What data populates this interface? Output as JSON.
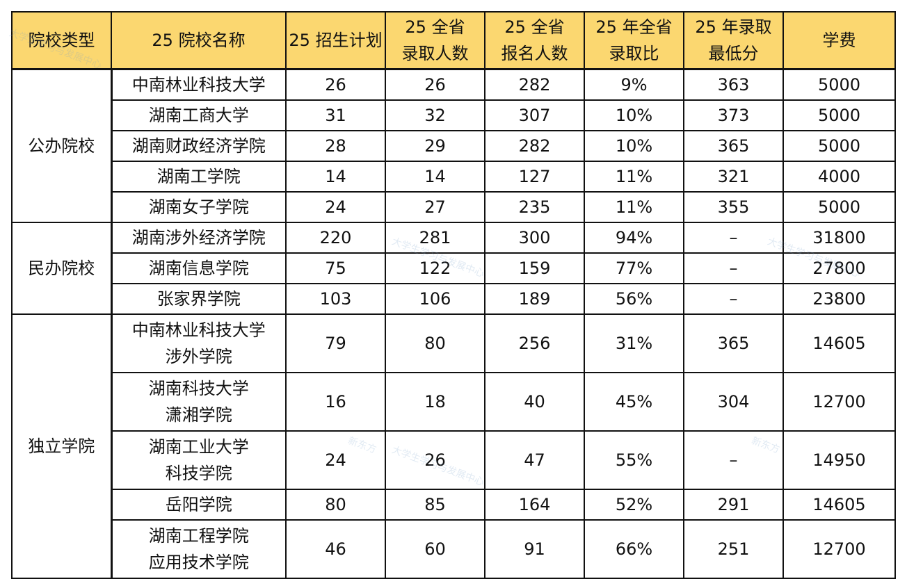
{
  "headers": [
    [
      "院校类型"
    ],
    [
      "25 院校名称"
    ],
    [
      "25 招生计划"
    ],
    [
      "25 全省",
      "录取人数"
    ],
    [
      "25 全省",
      "报名人数"
    ],
    [
      "25 年全省",
      "录取比"
    ],
    [
      "25 年录取",
      "最低分"
    ],
    [
      "学费"
    ]
  ],
  "groups": [
    {
      "type": "公办院校",
      "rows": [
        {
          "name": [
            "中南林业科技大学"
          ],
          "plan": "26",
          "admitted": "26",
          "applicants": "282",
          "ratio": "9%",
          "min_score": "363",
          "tuition": "5000"
        },
        {
          "name": [
            "湖南工商大学"
          ],
          "plan": "31",
          "admitted": "32",
          "applicants": "307",
          "ratio": "10%",
          "min_score": "373",
          "tuition": "5000"
        },
        {
          "name": [
            "湖南财政经济学院"
          ],
          "plan": "28",
          "admitted": "29",
          "applicants": "282",
          "ratio": "10%",
          "min_score": "365",
          "tuition": "5000"
        },
        {
          "name": [
            "湖南工学院"
          ],
          "plan": "14",
          "admitted": "14",
          "applicants": "127",
          "ratio": "11%",
          "min_score": "321",
          "tuition": "4000"
        },
        {
          "name": [
            "湖南女子学院"
          ],
          "plan": "24",
          "admitted": "27",
          "applicants": "235",
          "ratio": "11%",
          "min_score": "355",
          "tuition": "5000"
        }
      ]
    },
    {
      "type": "民办院校",
      "rows": [
        {
          "name": [
            "湖南涉外经济学院"
          ],
          "plan": "220",
          "admitted": "281",
          "applicants": "300",
          "ratio": "94%",
          "min_score": "–",
          "tuition": "31800"
        },
        {
          "name": [
            "湖南信息学院"
          ],
          "plan": "75",
          "admitted": "122",
          "applicants": "159",
          "ratio": "77%",
          "min_score": "–",
          "tuition": "27800"
        },
        {
          "name": [
            "张家界学院"
          ],
          "plan": "103",
          "admitted": "106",
          "applicants": "189",
          "ratio": "56%",
          "min_score": "–",
          "tuition": "23800"
        }
      ]
    },
    {
      "type": "独立学院",
      "rows": [
        {
          "name": [
            "中南林业科技大学",
            "涉外学院"
          ],
          "plan": "79",
          "admitted": "80",
          "applicants": "256",
          "ratio": "31%",
          "min_score": "365",
          "tuition": "14605"
        },
        {
          "name": [
            "湖南科技大学",
            "潇湘学院"
          ],
          "plan": "16",
          "admitted": "18",
          "applicants": "40",
          "ratio": "45%",
          "min_score": "304",
          "tuition": "12700"
        },
        {
          "name": [
            "湖南工业大学",
            "科技学院"
          ],
          "plan": "24",
          "admitted": "26",
          "applicants": "47",
          "ratio": "55%",
          "min_score": "–",
          "tuition": "14950"
        },
        {
          "name": [
            "岳阳学院"
          ],
          "plan": "80",
          "admitted": "85",
          "applicants": "164",
          "ratio": "52%",
          "min_score": "291",
          "tuition": "14605"
        },
        {
          "name": [
            "湖南工程学院",
            "应用技术学院"
          ],
          "plan": "46",
          "admitted": "60",
          "applicants": "91",
          "ratio": "66%",
          "min_score": "251",
          "tuition": "12700"
        }
      ]
    }
  ],
  "watermarks": [
    "大学生学习与发展中心",
    "新东方"
  ],
  "colors": {
    "header_bg": "#fbd770",
    "border": "#111111",
    "text": "#111111",
    "watermark": "rgba(120,160,200,0.22)"
  }
}
